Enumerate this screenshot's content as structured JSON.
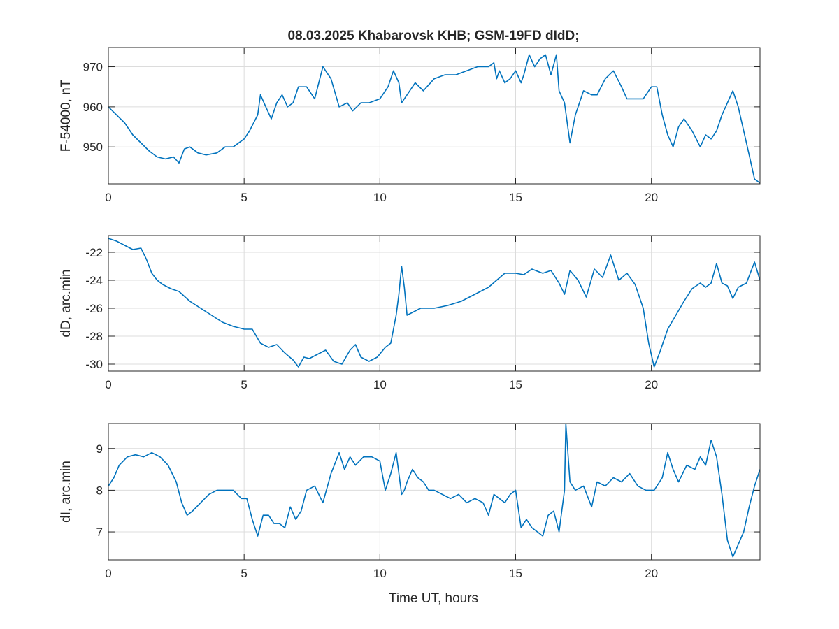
{
  "figure": {
    "title": "08.03.2025  Khabarovsk KHB; GSM-19FD dIdD;",
    "xlabel": "Time UT, hours",
    "line_color": "#0072BD"
  },
  "chart_data": [
    {
      "type": "line",
      "name": "F",
      "ylabel": "F-54000, nT",
      "xlim": [
        0,
        24
      ],
      "ylim": [
        940.8,
        974.8
      ],
      "xticks": [
        0,
        5,
        10,
        15,
        20
      ],
      "yticks": [
        950,
        960,
        970
      ],
      "grid": true,
      "x": [
        0,
        0.3,
        0.6,
        0.9,
        1.2,
        1.5,
        1.8,
        2.1,
        2.4,
        2.6,
        2.8,
        3.0,
        3.3,
        3.6,
        4.0,
        4.3,
        4.6,
        5.0,
        5.2,
        5.5,
        5.6,
        5.8,
        6.0,
        6.2,
        6.4,
        6.6,
        6.8,
        7.0,
        7.3,
        7.6,
        7.9,
        8.2,
        8.5,
        8.8,
        9.0,
        9.3,
        9.6,
        10.0,
        10.3,
        10.5,
        10.7,
        10.8,
        11.0,
        11.3,
        11.6,
        12.0,
        12.4,
        12.8,
        13.2,
        13.6,
        14.0,
        14.2,
        14.3,
        14.4,
        14.6,
        14.8,
        15.0,
        15.2,
        15.3,
        15.5,
        15.7,
        15.9,
        16.1,
        16.3,
        16.5,
        16.6,
        16.8,
        17.0,
        17.2,
        17.5,
        17.8,
        18.0,
        18.3,
        18.6,
        18.9,
        19.1,
        19.4,
        19.7,
        20.0,
        20.2,
        20.4,
        20.6,
        20.8,
        21.0,
        21.2,
        21.5,
        21.8,
        22.0,
        22.2,
        22.4,
        22.6,
        22.8,
        23.0,
        23.2,
        23.4,
        23.6,
        23.8,
        24.0
      ],
      "y": [
        960,
        958,
        956,
        953,
        951,
        949,
        947.5,
        947,
        947.5,
        946,
        949.5,
        950,
        948.5,
        948,
        948.5,
        950,
        950,
        952,
        954,
        958,
        963,
        960,
        957,
        961,
        963,
        960,
        961,
        965,
        965,
        962,
        970,
        967,
        960,
        961,
        959,
        961,
        961,
        962,
        965,
        969,
        966,
        961,
        963,
        966,
        964,
        967,
        968,
        968,
        969,
        970,
        970,
        971,
        967,
        969,
        966,
        967,
        969,
        966,
        968,
        973,
        970,
        972,
        973,
        968,
        973,
        964,
        961,
        951,
        958,
        964,
        963,
        963,
        967,
        969,
        965,
        962,
        962,
        962,
        965,
        965,
        958,
        953,
        950,
        955,
        957,
        954,
        950,
        953,
        952,
        954,
        958,
        961,
        964,
        960,
        954,
        948,
        942,
        941
      ]
    },
    {
      "type": "line",
      "name": "dD",
      "ylabel": "dD, arc.min",
      "xlim": [
        0,
        24
      ],
      "ylim": [
        -30.5,
        -20.8
      ],
      "xticks": [
        0,
        5,
        10,
        15,
        20
      ],
      "yticks": [
        -30,
        -28,
        -26,
        -24,
        -22
      ],
      "grid": true,
      "x": [
        0,
        0.3,
        0.6,
        0.9,
        1.2,
        1.4,
        1.6,
        1.8,
        2.0,
        2.3,
        2.6,
        3.0,
        3.4,
        3.8,
        4.2,
        4.6,
        5.0,
        5.3,
        5.6,
        5.9,
        6.2,
        6.5,
        6.8,
        7.0,
        7.2,
        7.4,
        7.7,
        8.0,
        8.3,
        8.6,
        8.9,
        9.1,
        9.3,
        9.6,
        9.9,
        10.2,
        10.4,
        10.6,
        10.7,
        10.8,
        10.9,
        11.0,
        11.2,
        11.5,
        12.0,
        12.5,
        13.0,
        13.5,
        14.0,
        14.3,
        14.6,
        15.0,
        15.3,
        15.6,
        16.0,
        16.3,
        16.6,
        16.8,
        17.0,
        17.3,
        17.6,
        17.9,
        18.2,
        18.5,
        18.8,
        19.1,
        19.4,
        19.7,
        19.9,
        20.1,
        20.3,
        20.6,
        20.9,
        21.2,
        21.5,
        21.8,
        22.0,
        22.2,
        22.4,
        22.6,
        22.8,
        23.0,
        23.2,
        23.5,
        23.8,
        24.0
      ],
      "y": [
        -21,
        -21.2,
        -21.5,
        -21.8,
        -21.7,
        -22.5,
        -23.5,
        -24,
        -24.3,
        -24.6,
        -24.8,
        -25.5,
        -26,
        -26.5,
        -27,
        -27.3,
        -27.5,
        -27.5,
        -28.5,
        -28.8,
        -28.6,
        -29.2,
        -29.7,
        -30.2,
        -29.5,
        -29.6,
        -29.3,
        -29,
        -29.8,
        -30,
        -29,
        -28.6,
        -29.5,
        -29.8,
        -29.5,
        -28.8,
        -28.5,
        -26.5,
        -25,
        -23,
        -24.5,
        -26.5,
        -26.3,
        -26,
        -26,
        -25.8,
        -25.5,
        -25,
        -24.5,
        -24,
        -23.5,
        -23.5,
        -23.6,
        -23.2,
        -23.5,
        -23.3,
        -24.2,
        -25,
        -23.3,
        -24,
        -25.2,
        -23.2,
        -23.8,
        -22.2,
        -24,
        -23.5,
        -24.3,
        -26,
        -28.5,
        -30.2,
        -29.2,
        -27.5,
        -26.5,
        -25.5,
        -24.6,
        -24.2,
        -24.5,
        -24.2,
        -22.8,
        -24.2,
        -24.4,
        -25.3,
        -24.5,
        -24.2,
        -22.7,
        -24
      ]
    },
    {
      "type": "line",
      "name": "dI",
      "ylabel": "dI, arc.min",
      "xlim": [
        0,
        24
      ],
      "ylim": [
        6.33,
        9.6
      ],
      "xticks": [
        0,
        5,
        10,
        15,
        20
      ],
      "yticks": [
        7,
        8,
        9
      ],
      "grid": true,
      "x": [
        0,
        0.2,
        0.4,
        0.7,
        1.0,
        1.3,
        1.6,
        1.9,
        2.2,
        2.5,
        2.7,
        2.9,
        3.1,
        3.4,
        3.7,
        4.0,
        4.3,
        4.6,
        4.9,
        5.1,
        5.3,
        5.5,
        5.7,
        5.9,
        6.1,
        6.3,
        6.5,
        6.7,
        6.9,
        7.1,
        7.3,
        7.6,
        7.9,
        8.2,
        8.5,
        8.7,
        8.9,
        9.1,
        9.4,
        9.7,
        10.0,
        10.2,
        10.4,
        10.6,
        10.8,
        10.9,
        11.0,
        11.2,
        11.4,
        11.6,
        11.8,
        12.0,
        12.3,
        12.6,
        12.9,
        13.2,
        13.5,
        13.8,
        14.0,
        14.2,
        14.4,
        14.6,
        14.8,
        15.0,
        15.2,
        15.4,
        15.6,
        15.8,
        16.0,
        16.2,
        16.4,
        16.6,
        16.8,
        16.85,
        17.0,
        17.2,
        17.5,
        17.8,
        18.0,
        18.3,
        18.6,
        18.9,
        19.2,
        19.5,
        19.8,
        20.1,
        20.4,
        20.6,
        20.8,
        21.0,
        21.3,
        21.6,
        21.8,
        22.0,
        22.2,
        22.4,
        22.6,
        22.8,
        23.0,
        23.2,
        23.4,
        23.6,
        23.8,
        24.0
      ],
      "y": [
        8.1,
        8.3,
        8.6,
        8.8,
        8.85,
        8.8,
        8.9,
        8.8,
        8.6,
        8.2,
        7.7,
        7.4,
        7.5,
        7.7,
        7.9,
        8.0,
        8.0,
        8.0,
        7.8,
        7.8,
        7.3,
        6.9,
        7.4,
        7.4,
        7.2,
        7.2,
        7.1,
        7.6,
        7.3,
        7.5,
        8.0,
        8.1,
        7.7,
        8.4,
        8.9,
        8.5,
        8.8,
        8.6,
        8.8,
        8.8,
        8.7,
        8.0,
        8.4,
        8.9,
        7.9,
        8.0,
        8.2,
        8.5,
        8.3,
        8.2,
        8.0,
        8.0,
        7.9,
        7.8,
        7.9,
        7.7,
        7.8,
        7.7,
        7.4,
        7.9,
        7.8,
        7.7,
        7.9,
        8.0,
        7.1,
        7.3,
        7.1,
        7.0,
        6.9,
        7.4,
        7.5,
        7.0,
        8.0,
        9.6,
        8.2,
        8.0,
        8.1,
        7.6,
        8.2,
        8.1,
        8.3,
        8.2,
        8.4,
        8.1,
        8.0,
        8.0,
        8.3,
        8.9,
        8.5,
        8.2,
        8.6,
        8.5,
        8.8,
        8.6,
        9.2,
        8.8,
        7.9,
        6.8,
        6.4,
        6.7,
        7.0,
        7.6,
        8.1,
        8.5
      ]
    }
  ]
}
